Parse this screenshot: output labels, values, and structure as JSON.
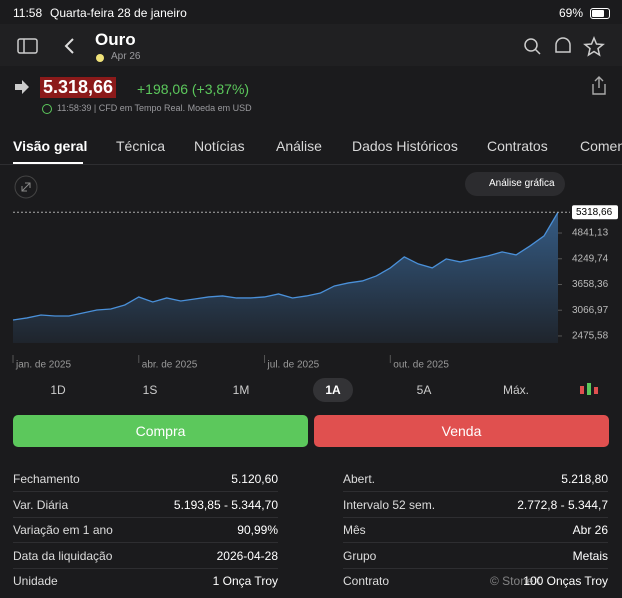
{
  "status": {
    "time": "11:58",
    "date": "Quarta-feira 28 de janeiro",
    "battery": "69%"
  },
  "header": {
    "title": "Ouro",
    "contract": "Apr 26"
  },
  "quote": {
    "price": "5.318,66",
    "change": "+198,06 (+3,87%)",
    "info": "11:58:39 | CFD em Tempo Real. Moeda em USD"
  },
  "tabs": [
    "Visão geral",
    "Técnica",
    "Notícias",
    "Análise",
    "Dados Históricos",
    "Contratos",
    "Comen"
  ],
  "chart_button": "Análise gráfica",
  "chart_data": {
    "type": "area",
    "color": "#4a90d9",
    "values": [
      2843,
      2890,
      2958,
      2935,
      2935,
      3004,
      3073,
      3096,
      3188,
      3372,
      3257,
      3349,
      3280,
      3326,
      3372,
      3395,
      3349,
      3349,
      3372,
      3441,
      3349,
      3395,
      3464,
      3625,
      3694,
      3740,
      3855,
      4039,
      4292,
      4131,
      4039,
      4246,
      4177,
      4246,
      4315,
      4407,
      4338,
      4545,
      4775,
      5318.66
    ],
    "x": [
      0,
      1,
      2,
      3,
      4,
      5,
      6,
      7,
      8,
      9,
      10,
      11,
      12,
      13,
      14,
      15,
      16,
      17,
      18,
      19,
      20,
      21,
      22,
      23,
      24,
      25,
      26,
      27,
      28,
      29,
      30,
      31,
      32,
      33,
      34,
      35,
      36,
      37,
      38,
      39
    ],
    "xlim": [
      0,
      39
    ],
    "xticks": [
      {
        "value": 0,
        "label": "jan. de 2025"
      },
      {
        "value": 9,
        "label": "abr. de 2025"
      },
      {
        "value": 18,
        "label": "jul. de 2025"
      },
      {
        "value": 27,
        "label": "out. de 2025"
      }
    ],
    "ylim": [
      2314,
      5485
    ],
    "yticks": [
      {
        "value": 2475.58,
        "label": "2475,58"
      },
      {
        "value": 3066.97,
        "label": "3066,97"
      },
      {
        "value": 3658.36,
        "label": "3658,36"
      },
      {
        "value": 4249.74,
        "label": "4249,74"
      },
      {
        "value": 4841.13,
        "label": "4841,13"
      }
    ],
    "price_tag": {
      "value": 5318.66,
      "label": "5318,66"
    }
  },
  "ranges": [
    "1D",
    "1S",
    "1M",
    "1A",
    "5A",
    "Máx."
  ],
  "actions": {
    "buy": "Compra",
    "sell": "Venda"
  },
  "stats": {
    "left": [
      [
        "Fechamento",
        "5.120,60"
      ],
      [
        "Var. Diária",
        "5.193,85 - 5.344,70"
      ],
      [
        "Variação em 1 ano",
        "90,99%"
      ],
      [
        "Data da liquidação",
        "2026-04-28"
      ],
      [
        "Unidade",
        "1 Onça Troy"
      ]
    ],
    "right": [
      [
        "Abert.",
        "5.218,80"
      ],
      [
        "Intervalo 52 sem.",
        "2.772,8 - 5.344,7"
      ],
      [
        "Mês",
        "Abr 26"
      ],
      [
        "Grupo",
        "Metais"
      ],
      [
        "Contrato",
        "100 Onças Troy"
      ]
    ]
  }
}
